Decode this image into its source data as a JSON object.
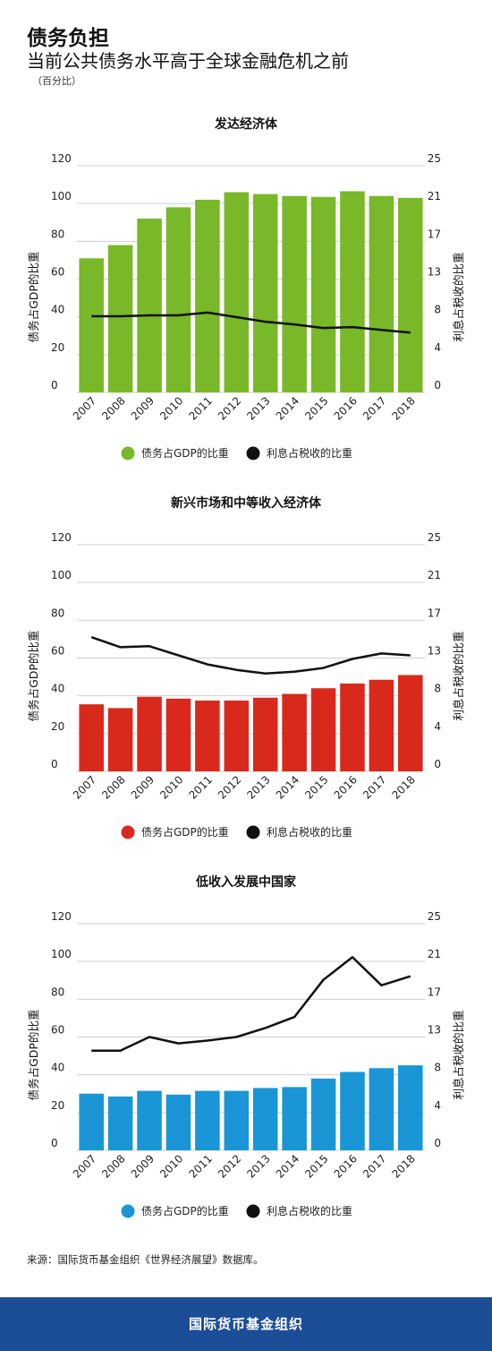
{
  "header": {
    "title": "债务负担",
    "subtitle": "当前公共债务水平高于全球金融危机之前",
    "unit_note": "（百分比）"
  },
  "source": "来源：国际货币基金组织《世界经济展望》数据库。",
  "footer": {
    "label": "国际货币基金组织"
  },
  "chart_data": [
    {
      "type": "bar",
      "title": "发达经济体",
      "ylabel": "债务占GDP的比重",
      "y2label": "利息占税收的比重",
      "categories": [
        "2007",
        "2008",
        "2009",
        "2010",
        "2011",
        "2012",
        "2013",
        "2014",
        "2015",
        "2016",
        "2017",
        "2018"
      ],
      "ylim": [
        0,
        120
      ],
      "y_ticks": [
        "0",
        "20",
        "40",
        "60",
        "80",
        "100",
        "120"
      ],
      "y2lim": [
        0,
        25
      ],
      "y2_ticks": [
        "0",
        "4",
        "8",
        "13",
        "17",
        "21",
        "25"
      ],
      "bar_color": "#79b829",
      "line_color": "#111111",
      "series": [
        {
          "name": "债务占GDP的比重",
          "axis": "left",
          "type": "bar",
          "values": [
            71,
            78,
            92,
            98,
            102,
            106,
            105,
            104,
            103.5,
            106.5,
            104,
            103
          ]
        },
        {
          "name": "利息占税收的比重",
          "axis": "right",
          "type": "line",
          "values": [
            8.4,
            8.4,
            8.5,
            8.5,
            8.8,
            8.3,
            7.8,
            7.5,
            7.1,
            7.2,
            6.9,
            6.6
          ]
        }
      ],
      "legend": [
        "债务占GDP的比重",
        "利息占税收的比重"
      ],
      "legend_position": "bottom",
      "grid": true
    },
    {
      "type": "bar",
      "title": "新兴市场和中等收入经济体",
      "ylabel": "债务占GDP的比重",
      "y2label": "利息占税收的比重",
      "categories": [
        "2007",
        "2008",
        "2009",
        "2010",
        "2011",
        "2012",
        "2013",
        "2014",
        "2015",
        "2016",
        "2017",
        "2018"
      ],
      "ylim": [
        0,
        120
      ],
      "y_ticks": [
        "0",
        "20",
        "40",
        "60",
        "80",
        "100",
        "120"
      ],
      "y2lim": [
        0,
        25
      ],
      "y2_ticks": [
        "0",
        "4",
        "8",
        "13",
        "17",
        "21",
        "25"
      ],
      "bar_color": "#d9291c",
      "line_color": "#111111",
      "series": [
        {
          "name": "债务占GDP的比重",
          "axis": "left",
          "type": "bar",
          "values": [
            35.5,
            33.5,
            39.5,
            38.5,
            37.5,
            37.5,
            39,
            41,
            44,
            46.5,
            48.5,
            51
          ]
        },
        {
          "name": "利息占税收的比重",
          "axis": "right",
          "type": "line",
          "values": [
            14.8,
            13.7,
            13.8,
            12.8,
            11.8,
            11.2,
            10.8,
            11.0,
            11.4,
            12.4,
            13.0,
            12.8
          ]
        }
      ],
      "legend": [
        "债务占GDP的比重",
        "利息占税收的比重"
      ],
      "legend_position": "bottom",
      "grid": true
    },
    {
      "type": "bar",
      "title": "低收入发展中国家",
      "ylabel": "债务占GDP的比重",
      "y2label": "利息占税收的比重",
      "categories": [
        "2007",
        "2008",
        "2009",
        "2010",
        "2011",
        "2012",
        "2013",
        "2014",
        "2015",
        "2016",
        "2017",
        "2018"
      ],
      "ylim": [
        0,
        120
      ],
      "y_ticks": [
        "0",
        "20",
        "40",
        "60",
        "80",
        "100",
        "120"
      ],
      "y2lim": [
        0,
        25
      ],
      "y2_ticks": [
        "0",
        "4",
        "8",
        "13",
        "17",
        "21",
        "25"
      ],
      "bar_color": "#1a96d6",
      "line_color": "#111111",
      "series": [
        {
          "name": "债务占GDP的比重",
          "axis": "left",
          "type": "bar",
          "values": [
            30,
            28.5,
            31.5,
            29.5,
            31.5,
            31.5,
            33,
            33.5,
            38,
            41.5,
            43.5,
            45
          ]
        },
        {
          "name": "利息占税收的比重",
          "axis": "right",
          "type": "line",
          "values": [
            11.0,
            11.0,
            12.5,
            11.8,
            12.1,
            12.5,
            13.5,
            14.7,
            18.8,
            21.3,
            18.2,
            19.2
          ]
        }
      ],
      "legend": [
        "债务占GDP的比重",
        "利息占税收的比重"
      ],
      "legend_position": "bottom",
      "grid": true
    }
  ]
}
